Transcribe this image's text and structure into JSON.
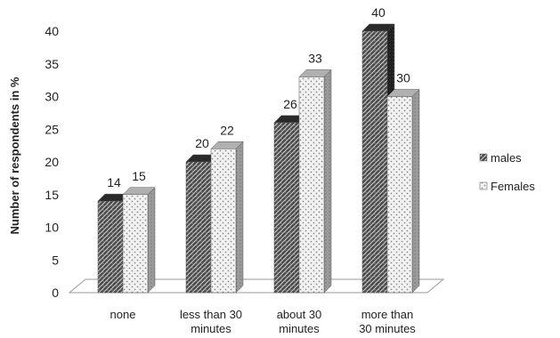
{
  "chart_data": {
    "type": "bar",
    "ylabel": "Number of respondents in %",
    "ylim": [
      0,
      40
    ],
    "yticks": [
      0,
      5,
      10,
      15,
      20,
      25,
      30,
      35,
      40
    ],
    "categories": [
      [
        "none"
      ],
      [
        "less than 30",
        "minutes"
      ],
      [
        "about 30",
        "minutes"
      ],
      [
        "more than",
        "30 minutes"
      ]
    ],
    "series": [
      {
        "name": "males",
        "values": [
          14,
          20,
          26,
          40
        ],
        "pattern": "hatch-dark"
      },
      {
        "name": "Females",
        "values": [
          15,
          22,
          33,
          30
        ],
        "pattern": "dots-light"
      }
    ],
    "legend_position": "right",
    "grid": false,
    "style": "3d"
  }
}
